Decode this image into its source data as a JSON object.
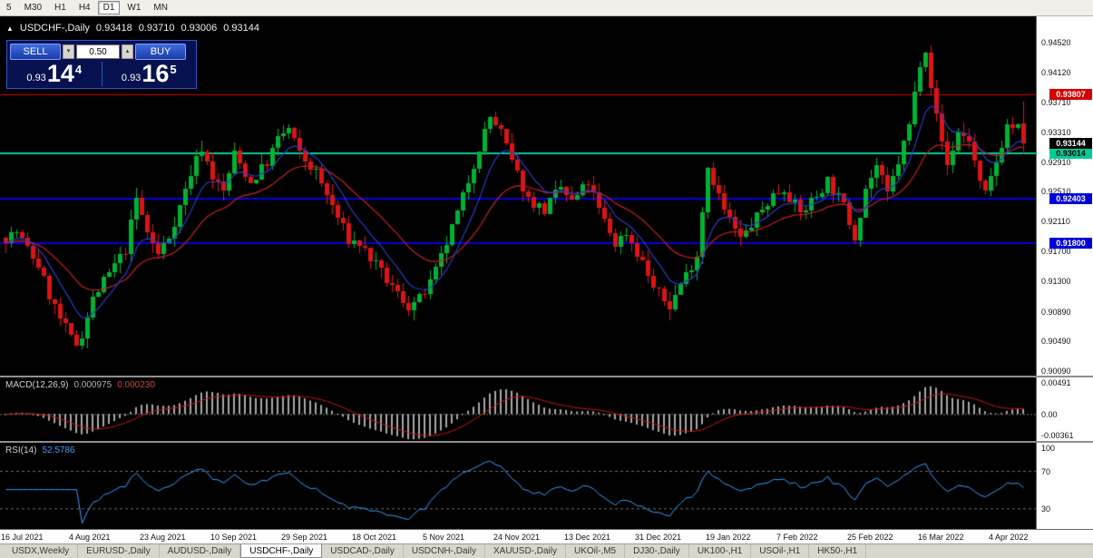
{
  "toolbar": {
    "timeframes": [
      "5",
      "M30",
      "H1",
      "H4",
      "D1",
      "W1",
      "MN"
    ],
    "active": "D1"
  },
  "header": {
    "marker": "▲",
    "title": "USDCHF-,Daily",
    "open": "0.93418",
    "high": "0.93710",
    "low": "0.93006",
    "close": "0.93144"
  },
  "trade_panel": {
    "sell_label": "SELL",
    "buy_label": "BUY",
    "volume": "0.50",
    "spin_down": "▾",
    "spin_up": "▴",
    "sell_price": {
      "prefix": "0.93",
      "big": "14",
      "sup": "4"
    },
    "buy_price": {
      "prefix": "0.93",
      "big": "16",
      "sup": "5"
    }
  },
  "price_axis": {
    "ticks": [
      "0.94520",
      "0.94120",
      "0.93710",
      "0.93310",
      "0.92910",
      "0.92510",
      "0.92110",
      "0.91700",
      "0.91300",
      "0.90890",
      "0.90490",
      "0.90090"
    ],
    "y_max": 0.94863,
    "y_min": 0.90016
  },
  "levels": [
    {
      "price": 0.93807,
      "label": "0.93807",
      "color": "#d40000",
      "text": "#ffffff",
      "width": 1
    },
    {
      "price": 0.93014,
      "label": "0.93014",
      "color": "#00cc99",
      "text": "#000000",
      "width": 2
    },
    {
      "price": 0.92403,
      "label": "0.92403",
      "color": "#0000dd",
      "text": "#ffffff",
      "width": 2
    },
    {
      "price": 0.918,
      "label": "0.91800",
      "color": "#0000dd",
      "text": "#ffffff",
      "width": 2
    }
  ],
  "current_price": {
    "price": 0.93144,
    "label": "0.93144",
    "bg": "#000000",
    "text": "#ffffff"
  },
  "chart": {
    "bars": 188,
    "bar_step": 6,
    "left_pad": 4,
    "up_color": "#00b232",
    "down_color": "#dc1414",
    "ma_fast_color": "#2a3cc8",
    "ma_slow_color": "#c81e28",
    "seed": 7,
    "anchors": [
      [
        0,
        0.9188
      ],
      [
        2,
        0.9196
      ],
      [
        4,
        0.9172
      ],
      [
        6,
        0.915
      ],
      [
        8,
        0.911
      ],
      [
        10,
        0.9078
      ],
      [
        12,
        0.9052
      ],
      [
        13,
        0.9044
      ],
      [
        14,
        0.9058
      ],
      [
        16,
        0.9105
      ],
      [
        18,
        0.9128
      ],
      [
        20,
        0.915
      ],
      [
        22,
        0.9172
      ],
      [
        24,
        0.924
      ],
      [
        26,
        0.9195
      ],
      [
        28,
        0.9165
      ],
      [
        30,
        0.919
      ],
      [
        32,
        0.923
      ],
      [
        34,
        0.9275
      ],
      [
        36,
        0.931
      ],
      [
        38,
        0.927
      ],
      [
        40,
        0.925
      ],
      [
        42,
        0.93
      ],
      [
        45,
        0.9262
      ],
      [
        48,
        0.929
      ],
      [
        50,
        0.932
      ],
      [
        52,
        0.9335
      ],
      [
        54,
        0.93
      ],
      [
        57,
        0.9275
      ],
      [
        60,
        0.923
      ],
      [
        63,
        0.9185
      ],
      [
        65,
        0.918
      ],
      [
        68,
        0.915
      ],
      [
        71,
        0.912
      ],
      [
        74,
        0.9095
      ],
      [
        76,
        0.9105
      ],
      [
        78,
        0.9125
      ],
      [
        80,
        0.916
      ],
      [
        83,
        0.922
      ],
      [
        85,
        0.9265
      ],
      [
        87,
        0.931
      ],
      [
        89,
        0.935
      ],
      [
        91,
        0.933
      ],
      [
        93,
        0.929
      ],
      [
        96,
        0.924
      ],
      [
        99,
        0.9225
      ],
      [
        102,
        0.9255
      ],
      [
        104,
        0.9235
      ],
      [
        107,
        0.9262
      ],
      [
        109,
        0.9225
      ],
      [
        112,
        0.918
      ],
      [
        114,
        0.9195
      ],
      [
        117,
        0.9155
      ],
      [
        119,
        0.912
      ],
      [
        122,
        0.9095
      ],
      [
        124,
        0.9125
      ],
      [
        127,
        0.9165
      ],
      [
        129,
        0.9285
      ],
      [
        130,
        0.9265
      ],
      [
        132,
        0.9225
      ],
      [
        135,
        0.9185
      ],
      [
        138,
        0.9215
      ],
      [
        141,
        0.9245
      ],
      [
        143,
        0.9255
      ],
      [
        146,
        0.922
      ],
      [
        149,
        0.9245
      ],
      [
        151,
        0.9265
      ],
      [
        154,
        0.923
      ],
      [
        156,
        0.919
      ],
      [
        158,
        0.9255
      ],
      [
        160,
        0.9285
      ],
      [
        162,
        0.9245
      ],
      [
        164,
        0.929
      ],
      [
        166,
        0.934
      ],
      [
        168,
        0.9425
      ],
      [
        169,
        0.9445
      ],
      [
        170,
        0.9395
      ],
      [
        171,
        0.935
      ],
      [
        173,
        0.9285
      ],
      [
        175,
        0.933
      ],
      [
        177,
        0.932
      ],
      [
        179,
        0.926
      ],
      [
        180,
        0.9245
      ],
      [
        182,
        0.929
      ],
      [
        184,
        0.934
      ],
      [
        186,
        0.9335
      ],
      [
        187,
        0.9314
      ]
    ],
    "last_candle": {
      "o": 0.93418,
      "h": 0.9371,
      "l": 0.93006,
      "c": 0.93144
    }
  },
  "x_axis": {
    "labels": [
      "16 Jul 2021",
      "4 Aug 2021",
      "23 Aug 2021",
      "10 Sep 2021",
      "29 Sep 2021",
      "18 Oct 2021",
      "5 Nov 2021",
      "24 Nov 2021",
      "13 Dec 2021",
      "31 Dec 2021",
      "19 Jan 2022",
      "7 Feb 2022",
      "25 Feb 2022",
      "16 Mar 2022",
      "4 Apr 2022"
    ],
    "indices": [
      0,
      13,
      26,
      39,
      52,
      65,
      78,
      91,
      104,
      117,
      130,
      143,
      156,
      169,
      182
    ]
  },
  "macd": {
    "name": "MACD(12,26,9)",
    "value_main": "0.000975",
    "value_signal": "0.000230",
    "ticks": [
      {
        "label": "0.00491",
        "value": 0.00491
      },
      {
        "label": "0.00",
        "value": 0
      },
      {
        "label": "-0.00361",
        "value": -0.00361
      }
    ],
    "y_max": 0.00491,
    "y_min": -0.00361,
    "hist_color": "#a8a8a8",
    "signal_color": "#c81616"
  },
  "rsi": {
    "name": "RSI(14)",
    "value": "52.5786",
    "ticks": [
      {
        "label": "100",
        "value": 100
      },
      {
        "label": "70",
        "value": 70
      },
      {
        "label": "30",
        "value": 30
      }
    ],
    "levels": [
      70,
      30
    ],
    "y_max": 100,
    "y_min": 8,
    "line_color": "#33a1ff",
    "level_color": "#6e6e6e"
  },
  "tabs": {
    "items": [
      "USDX,Weekly",
      "EURUSD-,Daily",
      "AUDUSD-,Daily",
      "USDCHF-,Daily",
      "USDCAD-,Daily",
      "USDCNH-,Daily",
      "XAUUSD-,Daily",
      "UKOil-,M5",
      "DJ30-,Daily",
      "UK100-,H1",
      "USOil-,H1",
      "HK50-,H1"
    ],
    "active": "USDCHF-,Daily"
  }
}
